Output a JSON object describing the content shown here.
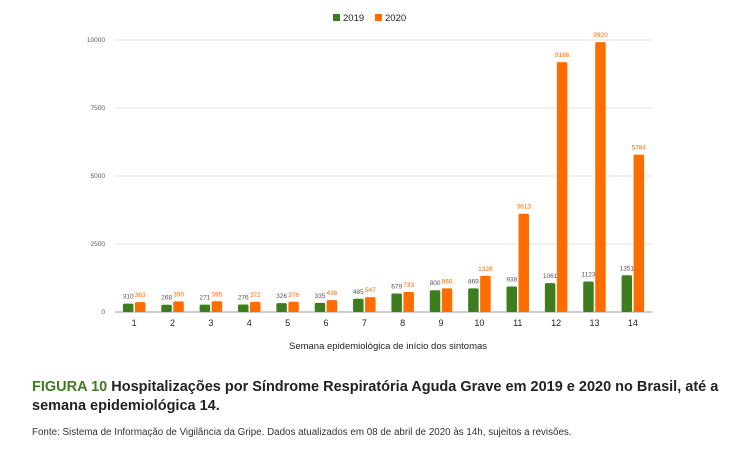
{
  "chart_data": {
    "type": "bar",
    "xlabel": "Semana epidemiológica de início dos sintomas",
    "ylabel": "",
    "categories": [
      "1",
      "2",
      "3",
      "4",
      "5",
      "6",
      "7",
      "8",
      "9",
      "10",
      "11",
      "12",
      "13",
      "14"
    ],
    "series": [
      {
        "name": "2019",
        "color": "#3e7d1e",
        "values": [
          310,
          268,
          271,
          276,
          326,
          335,
          485,
          679,
          800,
          869,
          938,
          1061,
          1123,
          1351
        ]
      },
      {
        "name": "2020",
        "color": "#ff6d01",
        "values": [
          363,
          390,
          395,
          372,
          376,
          436,
          547,
          733,
          868,
          1326,
          3613,
          9186,
          9920,
          5784
        ]
      }
    ],
    "yticks": [
      "0",
      "2500",
      "5000",
      "7500",
      "10000"
    ],
    "ylim": [
      0,
      10000
    ],
    "grid": true,
    "legend_position": "top-center"
  },
  "caption": {
    "figure_label": "FIGURA 10",
    "title": "Hospitalizações por Síndrome Respiratória Aguda Grave em 2019 e 2020 no Brasil, até a semana epidemiológica 14."
  },
  "source": "Fonte: Sistema de Informação de Vigilância da Gripe. Dados atualizados em 08 de abril de 2020 às 14h, sujeitos a revisões."
}
